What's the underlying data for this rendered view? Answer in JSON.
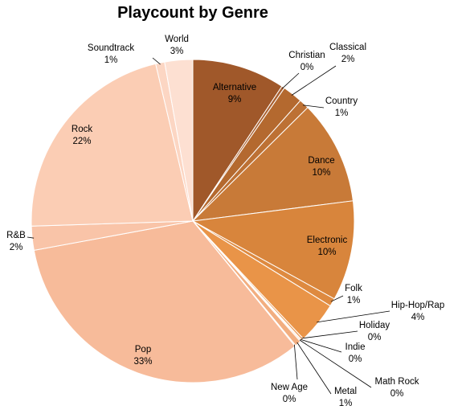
{
  "chart_data": {
    "type": "pie",
    "title": "Playcount by Genre",
    "slices": [
      {
        "name": "Alternative",
        "pct_label": "9%",
        "value": 9.3,
        "color": "#a0582a"
      },
      {
        "name": "Christian",
        "pct_label": "0%",
        "value": 0.3,
        "color": "#aa6030"
      },
      {
        "name": "Classical",
        "pct_label": "2%",
        "value": 2.0,
        "color": "#b4692f"
      },
      {
        "name": "Country",
        "pct_label": "1%",
        "value": 1.0,
        "color": "#bd7134"
      },
      {
        "name": "Dance",
        "pct_label": "10%",
        "value": 10.4,
        "color": "#c87a38"
      },
      {
        "name": "Electronic",
        "pct_label": "10%",
        "value": 10.0,
        "color": "#d8853c"
      },
      {
        "name": "Folk",
        "pct_label": "1%",
        "value": 0.8,
        "color": "#de8a40"
      },
      {
        "name": "Hip-Hop/Rap",
        "pct_label": "4%",
        "value": 4.2,
        "color": "#e99448"
      },
      {
        "name": "Holiday",
        "pct_label": "0%",
        "value": 0.2,
        "color": "#ec9a55"
      },
      {
        "name": "Indie",
        "pct_label": "0%",
        "value": 0.1,
        "color": "#eea062"
      },
      {
        "name": "Math Rock",
        "pct_label": "0%",
        "value": 0.1,
        "color": "#f0a670"
      },
      {
        "name": "Metal",
        "pct_label": "1%",
        "value": 0.6,
        "color": "#f2ae80"
      },
      {
        "name": "New Age",
        "pct_label": "0%",
        "value": 0.1,
        "color": "#f3b48a"
      },
      {
        "name": "Pop",
        "pct_label": "33%",
        "value": 33.0,
        "color": "#f7bb9a"
      },
      {
        "name": "R&B",
        "pct_label": "2%",
        "value": 2.4,
        "color": "#f9c4a8"
      },
      {
        "name": "Rock",
        "pct_label": "22%",
        "value": 21.8,
        "color": "#fbcdb4"
      },
      {
        "name": "Soundtrack",
        "pct_label": "1%",
        "value": 0.9,
        "color": "#fcd6c3"
      },
      {
        "name": "World",
        "pct_label": "3%",
        "value": 2.8,
        "color": "#fde0d2"
      }
    ]
  }
}
